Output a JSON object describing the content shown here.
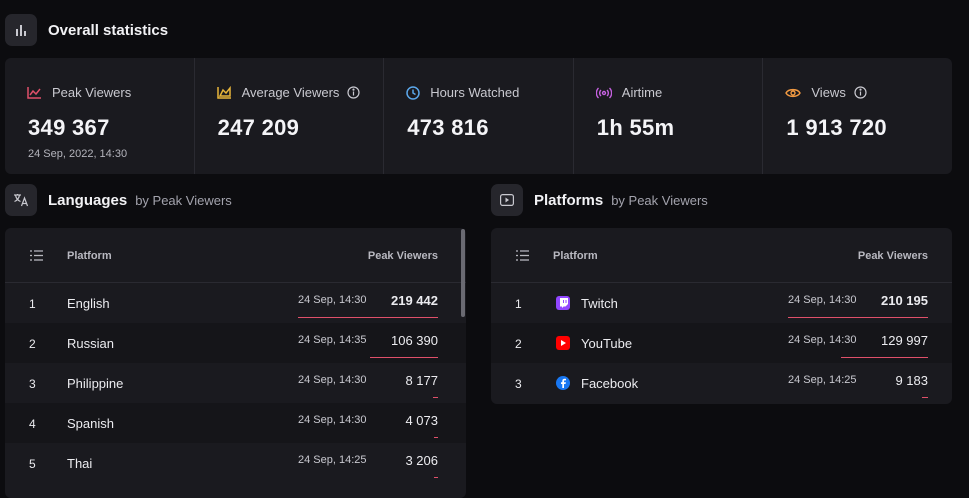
{
  "overall": {
    "title": "Overall statistics"
  },
  "stats": [
    {
      "label": "Peak Viewers",
      "value": "349 367",
      "date": "24 Sep, 2022, 14:30",
      "color": "#e0506a",
      "icon": "chart-line-icon"
    },
    {
      "label": "Average Viewers",
      "value": "247 209",
      "color": "#e7b53a",
      "icon": "chart-area-icon",
      "info": true
    },
    {
      "label": "Hours Watched",
      "value": "473 816",
      "color": "#5ba7ea",
      "icon": "clock-icon"
    },
    {
      "label": "Airtime",
      "value": "1h 55m",
      "color": "#c561e0",
      "icon": "broadcast-icon"
    },
    {
      "label": "Views",
      "value": "1 913 720",
      "color": "#f29a42",
      "icon": "eye-icon",
      "info": true
    }
  ],
  "languages": {
    "title": "Languages",
    "subtitle": "by Peak Viewers",
    "col_platform": "Platform",
    "col_peak": "Peak Viewers",
    "rows": [
      {
        "rank": "1",
        "name": "English",
        "time": "24 Sep, 14:30",
        "value": "219 442",
        "fraction": 1.0
      },
      {
        "rank": "2",
        "name": "Russian",
        "time": "24 Sep, 14:35",
        "value": "106 390",
        "fraction": 0.485
      },
      {
        "rank": "3",
        "name": "Philippine",
        "time": "24 Sep, 14:30",
        "value": "8 177",
        "fraction": 0.037
      },
      {
        "rank": "4",
        "name": "Spanish",
        "time": "24 Sep, 14:30",
        "value": "4 073",
        "fraction": 0.019
      },
      {
        "rank": "5",
        "name": "Thai",
        "time": "24 Sep, 14:25",
        "value": "3 206",
        "fraction": 0.015
      }
    ]
  },
  "platforms": {
    "title": "Platforms",
    "subtitle": "by Peak Viewers",
    "col_platform": "Platform",
    "col_peak": "Peak Viewers",
    "rows": [
      {
        "rank": "1",
        "name": "Twitch",
        "icon": "twitch-icon",
        "color": "#9146ff",
        "time": "24 Sep, 14:30",
        "value": "210 195",
        "fraction": 1.0
      },
      {
        "rank": "2",
        "name": "YouTube",
        "icon": "youtube-icon",
        "color": "#ff0000",
        "time": "24 Sep, 14:30",
        "value": "129 997",
        "fraction": 0.618
      },
      {
        "rank": "3",
        "name": "Facebook",
        "icon": "facebook-icon",
        "color": "#1877f2",
        "time": "24 Sep, 14:25",
        "value": "9 183",
        "fraction": 0.044
      }
    ]
  }
}
